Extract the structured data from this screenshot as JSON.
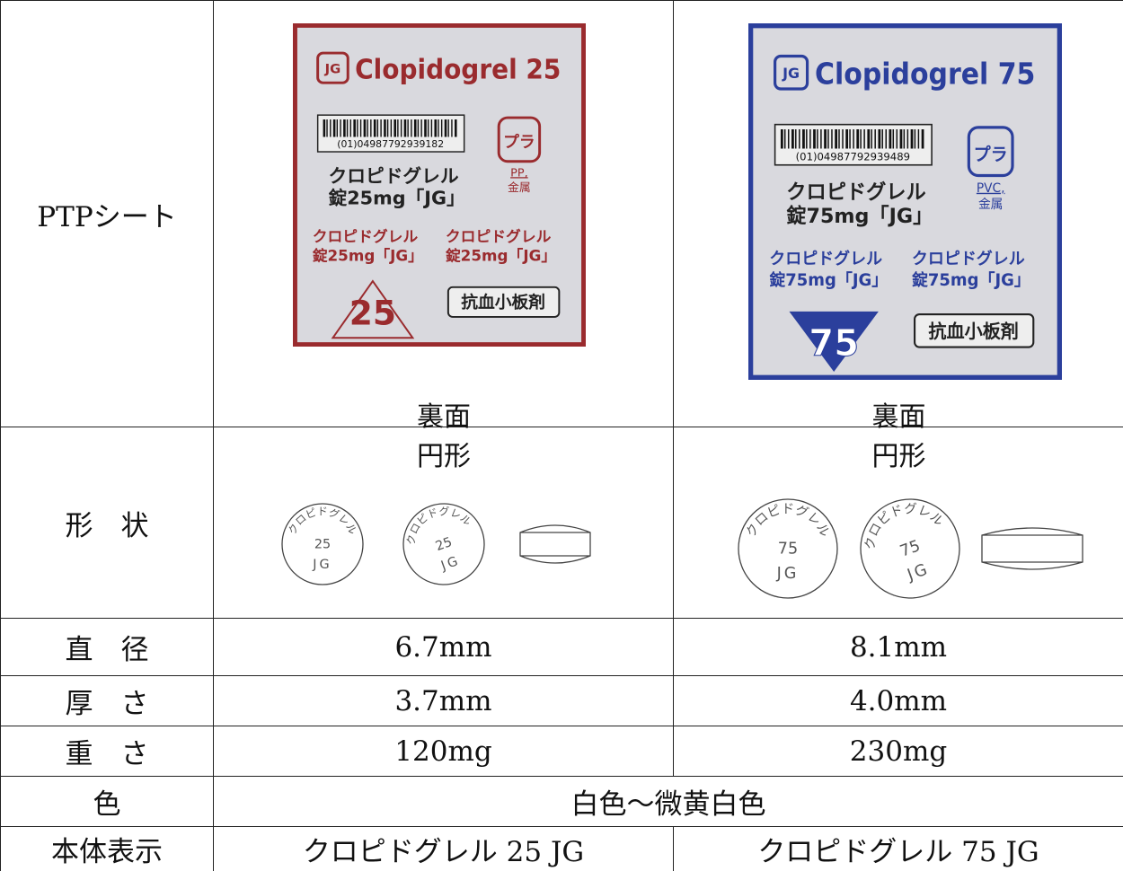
{
  "ptp": {
    "label": "PTPシート",
    "sheets": [
      {
        "logo": "JG",
        "brand": "Clopidogrel 25",
        "barcode": "(01)04987792939182",
        "name": [
          "クロピドグレル",
          "錠25mg「JG」"
        ],
        "recycle": "プラ",
        "material": [
          "PP,",
          "金属"
        ],
        "strength": "25",
        "category": "抗血小板剤",
        "caption": "裏面",
        "color": "#9a2b2e"
      },
      {
        "logo": "JG",
        "brand": "Clopidogrel 75",
        "barcode": "(01)04987792939489",
        "name": [
          "クロピドグレル",
          "錠75mg「JG」"
        ],
        "recycle": "プラ",
        "material": [
          "PVC,",
          "金属"
        ],
        "strength": "75",
        "category": "抗血小板剤",
        "caption": "裏面",
        "color": "#2b3f9c"
      }
    ]
  },
  "shape": {
    "label": "形　状",
    "tablets": [
      {
        "caption": "円形",
        "imprint": [
          "クロピドグレル",
          "25",
          "JG"
        ]
      },
      {
        "caption": "円形",
        "imprint": [
          "クロピドグレル",
          "75",
          "JG"
        ]
      }
    ]
  },
  "rows": [
    {
      "label": "直　径",
      "values": [
        "6.7mm",
        "8.1mm"
      ]
    },
    {
      "label": "厚　さ",
      "values": [
        "3.7mm",
        "4.0mm"
      ]
    },
    {
      "label": "重　さ",
      "values": [
        "120mg",
        "230mg"
      ]
    }
  ],
  "color_row": {
    "label": "色",
    "value": "白色～微黄白色"
  },
  "marking": {
    "label": "本体表示",
    "values": [
      "クロピドグレル 25 JG",
      "クロピドグレル 75 JG"
    ]
  }
}
